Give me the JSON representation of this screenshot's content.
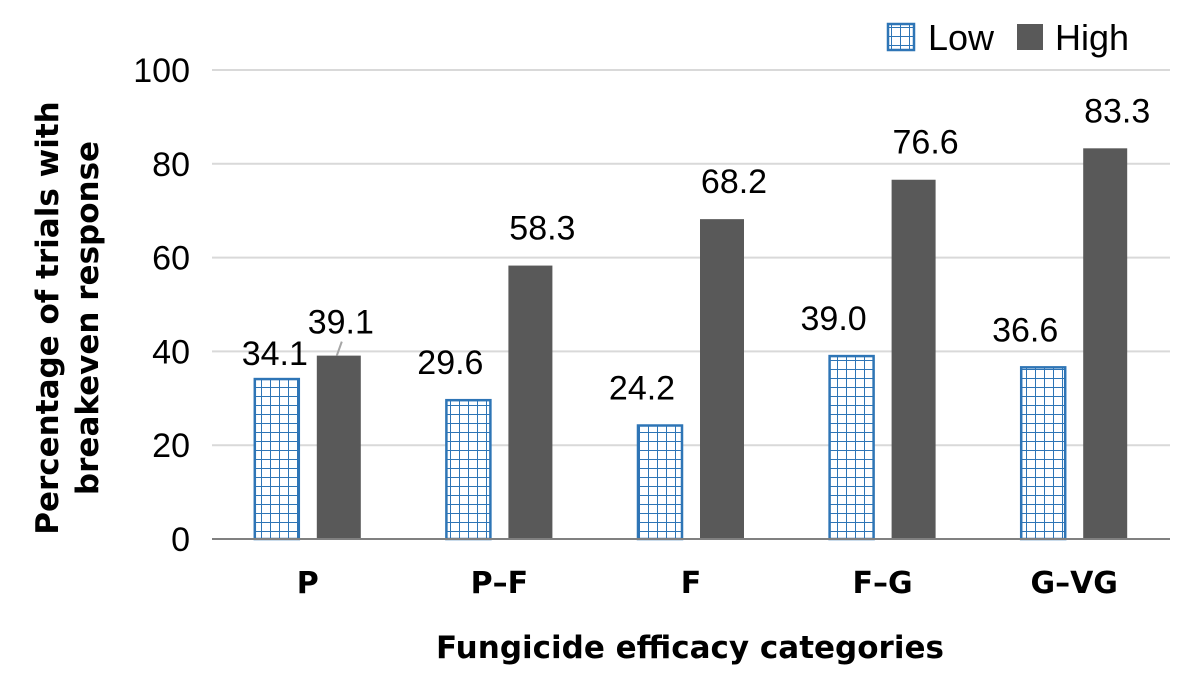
{
  "chart_data": {
    "type": "bar",
    "title": "",
    "xlabel": "Fungicide efficacy categories",
    "ylabel_lines": [
      "Percentage of trials with",
      "breakeven response"
    ],
    "categories": [
      "P",
      "P–F",
      "F",
      "F–G",
      "G–VG"
    ],
    "series": [
      {
        "name": "Low",
        "values": [
          34.1,
          29.6,
          24.2,
          39.0,
          36.6
        ],
        "labels": [
          "34.1",
          "29.6",
          "24.2",
          "39.0",
          "36.6"
        ],
        "color": "#2e75b6",
        "pattern": "grid"
      },
      {
        "name": "High",
        "values": [
          39.1,
          58.3,
          68.2,
          76.6,
          83.3
        ],
        "labels": [
          "39.1",
          "58.3",
          "68.2",
          "76.6",
          "83.3"
        ],
        "color": "#595959",
        "pattern": "solid"
      }
    ],
    "ylim": [
      0,
      100
    ],
    "yticks": [
      0,
      20,
      40,
      60,
      80,
      100
    ],
    "grid": true,
    "legend_position": "top-right"
  }
}
